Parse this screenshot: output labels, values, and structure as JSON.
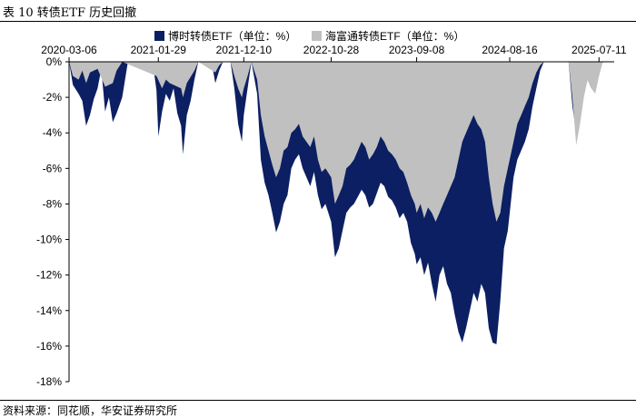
{
  "caption": "表 10 转债ETF 历史回撤",
  "source": "资料来源：同花顺，华安证券研究所",
  "colors": {
    "series1": "#0c1f63",
    "series2": "#c0c0c0"
  },
  "chart_data": {
    "type": "area",
    "x_tick_labels": [
      "2020-03-06",
      "2021-01-29",
      "2021-12-10",
      "2022-10-28",
      "2023-09-08",
      "2024-08-16",
      "2025-07-11"
    ],
    "x_axis_position": "top",
    "y_tick_labels": [
      "0%",
      "-2%",
      "-4%",
      "-6%",
      "-8%",
      "-10%",
      "-12%",
      "-14%",
      "-16%",
      "-18%"
    ],
    "ylim": [
      -18,
      0
    ],
    "y_unit": "%",
    "grid": false,
    "legend_position": "top",
    "x_range": [
      "2020-03-06",
      "2025-09-05"
    ],
    "series": [
      {
        "name": "博时转债ETF（单位：%）",
        "color": "#0c1f63",
        "points": [
          [
            "2020-03-06",
            0
          ],
          [
            "2020-03-20",
            -1.3
          ],
          [
            "2020-04-10",
            -1.8
          ],
          [
            "2020-04-24",
            -2.2
          ],
          [
            "2020-05-08",
            -3.6
          ],
          [
            "2020-05-22",
            -3.0
          ],
          [
            "2020-06-05",
            -2.1
          ],
          [
            "2020-06-19",
            -1.5
          ],
          [
            "2020-07-03",
            -0.4
          ],
          [
            "2020-07-17",
            -2.8
          ],
          [
            "2020-07-31",
            -2.0
          ],
          [
            "2020-08-14",
            -3.4
          ],
          [
            "2020-08-28",
            -2.9
          ],
          [
            "2020-09-18",
            -2.0
          ],
          [
            "2020-10-09",
            0
          ],
          [
            "2021-01-08",
            0
          ],
          [
            "2021-01-22",
            -1.6
          ],
          [
            "2021-01-29",
            -4.2
          ],
          [
            "2021-02-12",
            -2.8
          ],
          [
            "2021-02-26",
            -1.8
          ],
          [
            "2021-03-12",
            -2.2
          ],
          [
            "2021-03-26",
            -1.5
          ],
          [
            "2021-04-09",
            -2.9
          ],
          [
            "2021-04-23",
            -3.6
          ],
          [
            "2021-04-30",
            -5.2
          ],
          [
            "2021-05-14",
            -3.0
          ],
          [
            "2021-05-28",
            -2.2
          ],
          [
            "2021-06-11",
            -1.0
          ],
          [
            "2021-06-25",
            0
          ],
          [
            "2021-08-13",
            0
          ],
          [
            "2021-08-27",
            -1.2
          ],
          [
            "2021-09-10",
            -0.5
          ],
          [
            "2021-09-24",
            0
          ],
          [
            "2021-10-22",
            0
          ],
          [
            "2021-11-05",
            -1.5
          ],
          [
            "2021-11-19",
            -3.5
          ],
          [
            "2021-12-03",
            -4.5
          ],
          [
            "2021-12-10",
            -3.0
          ],
          [
            "2021-12-24",
            -1.5
          ],
          [
            "2022-01-07",
            0
          ],
          [
            "2022-01-28",
            -1.8
          ],
          [
            "2022-02-11",
            -5.5
          ],
          [
            "2022-02-25",
            -6.8
          ],
          [
            "2022-03-11",
            -7.5
          ],
          [
            "2022-03-25",
            -8.5
          ],
          [
            "2022-04-08",
            -9.6
          ],
          [
            "2022-04-22",
            -9.0
          ],
          [
            "2022-05-06",
            -8.0
          ],
          [
            "2022-05-20",
            -7.5
          ],
          [
            "2022-06-03",
            -6.0
          ],
          [
            "2022-06-17",
            -5.5
          ],
          [
            "2022-07-01",
            -5.2
          ],
          [
            "2022-07-15",
            -6.0
          ],
          [
            "2022-07-29",
            -6.5
          ],
          [
            "2022-08-12",
            -7.0
          ],
          [
            "2022-08-26",
            -6.2
          ],
          [
            "2022-09-09",
            -7.5
          ],
          [
            "2022-09-23",
            -8.3
          ],
          [
            "2022-10-07",
            -8.0
          ],
          [
            "2022-10-28",
            -9.0
          ],
          [
            "2022-11-11",
            -11.0
          ],
          [
            "2022-11-25",
            -10.5
          ],
          [
            "2022-12-09",
            -9.5
          ],
          [
            "2022-12-23",
            -8.5
          ],
          [
            "2023-01-06",
            -8.2
          ],
          [
            "2023-01-20",
            -8.0
          ],
          [
            "2023-02-03",
            -7.6
          ],
          [
            "2023-02-17",
            -7.2
          ],
          [
            "2023-03-03",
            -7.5
          ],
          [
            "2023-03-17",
            -8.2
          ],
          [
            "2023-03-31",
            -8.0
          ],
          [
            "2023-04-14",
            -7.4
          ],
          [
            "2023-04-28",
            -6.8
          ],
          [
            "2023-05-12",
            -7.0
          ],
          [
            "2023-05-26",
            -7.6
          ],
          [
            "2023-06-09",
            -7.8
          ],
          [
            "2023-06-23",
            -8.2
          ],
          [
            "2023-07-07",
            -8.8
          ],
          [
            "2023-07-21",
            -8.5
          ],
          [
            "2023-08-04",
            -9.0
          ],
          [
            "2023-08-18",
            -10.2
          ],
          [
            "2023-09-01",
            -10.8
          ],
          [
            "2023-09-08",
            -11.4
          ],
          [
            "2023-09-22",
            -11.0
          ],
          [
            "2023-10-06",
            -12.0
          ],
          [
            "2023-10-20",
            -11.3
          ],
          [
            "2023-11-03",
            -12.5
          ],
          [
            "2023-11-17",
            -13.5
          ],
          [
            "2023-12-01",
            -12.0
          ],
          [
            "2023-12-15",
            -11.5
          ],
          [
            "2023-12-29",
            -12.5
          ],
          [
            "2024-01-12",
            -13.0
          ],
          [
            "2024-01-26",
            -14.2
          ],
          [
            "2024-02-09",
            -15.2
          ],
          [
            "2024-02-23",
            -15.8
          ],
          [
            "2024-03-08",
            -15.0
          ],
          [
            "2024-03-22",
            -14.0
          ],
          [
            "2024-04-05",
            -13.0
          ],
          [
            "2024-04-19",
            -13.5
          ],
          [
            "2024-05-03",
            -12.5
          ],
          [
            "2024-05-17",
            -13.0
          ],
          [
            "2024-05-31",
            -15.0
          ],
          [
            "2024-06-14",
            -15.8
          ],
          [
            "2024-06-28",
            -15.9
          ],
          [
            "2024-07-12",
            -13.5
          ],
          [
            "2024-07-26",
            -10.5
          ],
          [
            "2024-08-09",
            -9.5
          ],
          [
            "2024-08-16",
            -8.5
          ],
          [
            "2024-08-30",
            -6.5
          ],
          [
            "2024-09-13",
            -5.5
          ],
          [
            "2024-09-27",
            -5.0
          ],
          [
            "2024-10-11",
            -4.5
          ],
          [
            "2024-10-25",
            -3.8
          ],
          [
            "2024-11-08",
            -2.5
          ],
          [
            "2024-11-22",
            -1.5
          ],
          [
            "2024-12-06",
            -0.5
          ],
          [
            "2024-12-20",
            0
          ],
          [
            "2025-03-21",
            0
          ],
          [
            "2025-04-04",
            -2.5
          ],
          [
            "2025-04-18",
            -4.0
          ],
          [
            "2025-05-02",
            -3.2
          ],
          [
            "2025-05-16",
            -1.8
          ],
          [
            "2025-05-30",
            -1.0
          ],
          [
            "2025-06-13",
            -1.5
          ],
          [
            "2025-06-27",
            -1.6
          ],
          [
            "2025-07-11",
            -0.5
          ],
          [
            "2025-07-25",
            0
          ],
          [
            "2025-09-05",
            0
          ]
        ]
      },
      {
        "name": "海富通转债ETF（单位：%）",
        "color": "#c0c0c0",
        "points": [
          [
            "2020-03-06",
            0
          ],
          [
            "2020-03-20",
            -0.8
          ],
          [
            "2020-04-10",
            -1.0
          ],
          [
            "2020-04-24",
            -0.5
          ],
          [
            "2020-05-08",
            -1.2
          ],
          [
            "2020-05-22",
            -0.6
          ],
          [
            "2020-06-19",
            -0.4
          ],
          [
            "2020-07-17",
            -1.4
          ],
          [
            "2020-08-14",
            -1.2
          ],
          [
            "2020-08-28",
            -0.5
          ],
          [
            "2020-09-18",
            0
          ],
          [
            "2021-01-22",
            -0.8
          ],
          [
            "2021-02-12",
            -1.5
          ],
          [
            "2021-02-26",
            -1.0
          ],
          [
            "2021-03-12",
            -1.2
          ],
          [
            "2021-04-23",
            -1.5
          ],
          [
            "2021-04-30",
            -2.0
          ],
          [
            "2021-05-14",
            -1.2
          ],
          [
            "2021-06-11",
            -0.5
          ],
          [
            "2021-06-25",
            0
          ],
          [
            "2021-08-27",
            -0.6
          ],
          [
            "2021-09-10",
            -0.2
          ],
          [
            "2021-09-24",
            0
          ],
          [
            "2021-10-22",
            0
          ],
          [
            "2021-11-05",
            -0.8
          ],
          [
            "2021-11-19",
            -1.5
          ],
          [
            "2021-12-03",
            -2.0
          ],
          [
            "2021-12-10",
            -1.5
          ],
          [
            "2021-12-24",
            -0.8
          ],
          [
            "2022-01-07",
            0
          ],
          [
            "2022-01-28",
            -1.0
          ],
          [
            "2022-02-11",
            -3.0
          ],
          [
            "2022-02-25",
            -4.2
          ],
          [
            "2022-03-11",
            -5.0
          ],
          [
            "2022-03-25",
            -5.8
          ],
          [
            "2022-04-08",
            -6.5
          ],
          [
            "2022-04-22",
            -6.0
          ],
          [
            "2022-05-06",
            -5.0
          ],
          [
            "2022-05-20",
            -4.8
          ],
          [
            "2022-06-03",
            -4.0
          ],
          [
            "2022-06-17",
            -3.8
          ],
          [
            "2022-07-01",
            -3.5
          ],
          [
            "2022-07-15",
            -4.2
          ],
          [
            "2022-07-29",
            -4.5
          ],
          [
            "2022-08-12",
            -4.8
          ],
          [
            "2022-08-26",
            -4.2
          ],
          [
            "2022-09-09",
            -5.5
          ],
          [
            "2022-09-23",
            -6.2
          ],
          [
            "2022-10-07",
            -6.0
          ],
          [
            "2022-10-28",
            -6.5
          ],
          [
            "2022-11-11",
            -8.0
          ],
          [
            "2022-11-25",
            -7.5
          ],
          [
            "2022-12-09",
            -7.0
          ],
          [
            "2022-12-23",
            -6.0
          ],
          [
            "2023-01-06",
            -5.8
          ],
          [
            "2023-01-20",
            -5.5
          ],
          [
            "2023-02-03",
            -5.0
          ],
          [
            "2023-02-17",
            -4.5
          ],
          [
            "2023-03-03",
            -4.8
          ],
          [
            "2023-03-17",
            -5.5
          ],
          [
            "2023-03-31",
            -5.2
          ],
          [
            "2023-04-14",
            -4.8
          ],
          [
            "2023-04-28",
            -4.2
          ],
          [
            "2023-05-12",
            -4.5
          ],
          [
            "2023-05-26",
            -5.0
          ],
          [
            "2023-06-09",
            -5.2
          ],
          [
            "2023-06-23",
            -5.5
          ],
          [
            "2023-07-07",
            -6.0
          ],
          [
            "2023-07-21",
            -6.2
          ],
          [
            "2023-08-04",
            -6.8
          ],
          [
            "2023-08-18",
            -7.5
          ],
          [
            "2023-09-01",
            -8.0
          ],
          [
            "2023-09-08",
            -8.5
          ],
          [
            "2023-09-22",
            -8.0
          ],
          [
            "2023-10-06",
            -8.8
          ],
          [
            "2023-10-20",
            -8.2
          ],
          [
            "2023-11-03",
            -8.5
          ],
          [
            "2023-11-17",
            -9.0
          ],
          [
            "2023-12-01",
            -8.5
          ],
          [
            "2023-12-15",
            -8.0
          ],
          [
            "2023-12-29",
            -7.5
          ],
          [
            "2024-01-12",
            -7.0
          ],
          [
            "2024-01-26",
            -6.5
          ],
          [
            "2024-02-09",
            -5.5
          ],
          [
            "2024-02-23",
            -4.5
          ],
          [
            "2024-03-08",
            -4.0
          ],
          [
            "2024-03-22",
            -3.5
          ],
          [
            "2024-04-05",
            -3.0
          ],
          [
            "2024-04-19",
            -3.5
          ],
          [
            "2024-05-03",
            -3.8
          ],
          [
            "2024-05-17",
            -4.5
          ],
          [
            "2024-05-31",
            -6.5
          ],
          [
            "2024-06-14",
            -8.0
          ],
          [
            "2024-06-28",
            -9.0
          ],
          [
            "2024-07-12",
            -8.5
          ],
          [
            "2024-07-26",
            -7.0
          ],
          [
            "2024-08-09",
            -6.0
          ],
          [
            "2024-08-16",
            -5.5
          ],
          [
            "2024-08-30",
            -4.5
          ],
          [
            "2024-09-13",
            -3.5
          ],
          [
            "2024-09-27",
            -3.0
          ],
          [
            "2024-10-11",
            -2.5
          ],
          [
            "2024-10-25",
            -2.0
          ],
          [
            "2024-11-08",
            -1.2
          ],
          [
            "2024-11-22",
            -0.6
          ],
          [
            "2024-12-06",
            -0.2
          ],
          [
            "2024-12-20",
            0
          ],
          [
            "2025-03-21",
            0
          ],
          [
            "2025-04-04",
            -2.0
          ],
          [
            "2025-04-18",
            -4.7
          ],
          [
            "2025-05-02",
            -3.5
          ],
          [
            "2025-05-16",
            -2.0
          ],
          [
            "2025-05-30",
            -1.0
          ],
          [
            "2025-06-13",
            -1.5
          ],
          [
            "2025-06-27",
            -1.8
          ],
          [
            "2025-07-11",
            -0.8
          ],
          [
            "2025-07-25",
            0
          ],
          [
            "2025-09-05",
            0
          ]
        ]
      }
    ]
  }
}
